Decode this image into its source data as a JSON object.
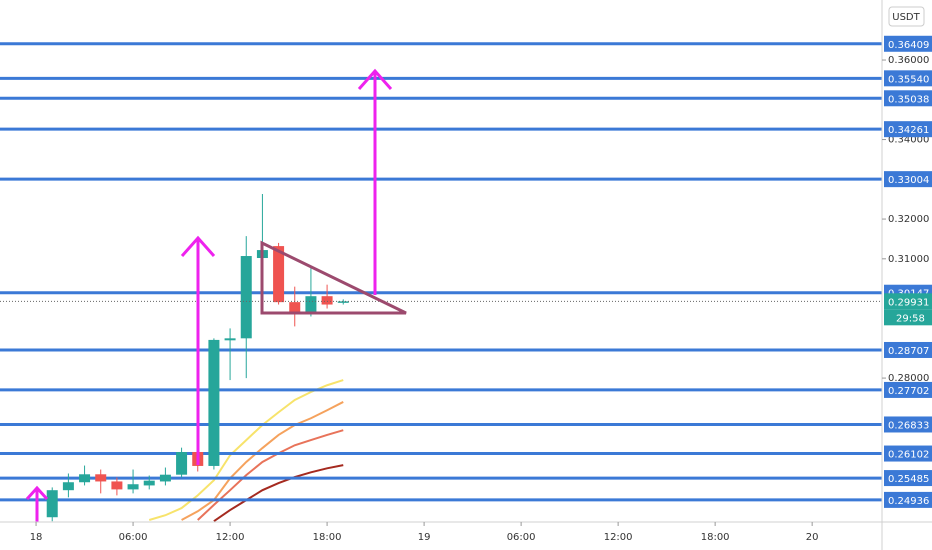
{
  "chart_data": {
    "type": "candlestick",
    "currency": "USDT",
    "countdown": "29:58",
    "x": [
      1,
      2,
      3,
      4,
      5,
      6,
      7,
      8,
      9,
      10,
      11,
      12,
      13,
      14,
      15,
      16,
      17,
      18,
      19
    ],
    "open": [
      0.245,
      0.2518,
      0.2538,
      0.2558,
      0.254,
      0.252,
      0.253,
      0.254,
      0.2557,
      0.2614,
      0.2579,
      0.2895,
      0.29,
      0.3102,
      0.3132,
      0.2991,
      0.2966,
      0.3006,
      0.299
    ],
    "high": [
      0.2525,
      0.256,
      0.258,
      0.257,
      0.255,
      0.257,
      0.2555,
      0.2575,
      0.2625,
      0.2625,
      0.29,
      0.2925,
      0.3157,
      0.3263,
      0.314,
      0.303,
      0.3077,
      0.3035,
      0.2998
    ],
    "low": [
      0.244,
      0.25,
      0.253,
      0.251,
      0.2505,
      0.251,
      0.252,
      0.253,
      0.255,
      0.2565,
      0.257,
      0.2795,
      0.28,
      0.3042,
      0.2985,
      0.293,
      0.2955,
      0.2975,
      0.2985
    ],
    "close": [
      0.2518,
      0.2538,
      0.2558,
      0.254,
      0.252,
      0.2533,
      0.2542,
      0.2557,
      0.2614,
      0.2579,
      0.2896,
      0.29,
      0.3107,
      0.3122,
      0.2991,
      0.2966,
      0.3006,
      0.2985,
      0.2993
    ],
    "up_color": "#26a69a",
    "down_color": "#ef5350",
    "series": [
      {
        "color": "#f7e36b",
        "values": [
          null,
          null,
          null,
          null,
          null,
          null,
          0.2443,
          0.2455,
          0.2473,
          0.2505,
          0.2543,
          0.2606,
          0.2644,
          0.2682,
          0.2714,
          0.2745,
          0.2765,
          0.2782,
          0.2795
        ]
      },
      {
        "color": "#f5a25d",
        "values": [
          null,
          null,
          null,
          null,
          null,
          null,
          null,
          null,
          0.2443,
          0.2465,
          0.2493,
          0.2548,
          0.2589,
          0.2624,
          0.2657,
          0.2682,
          0.2699,
          0.2719,
          0.274
        ]
      },
      {
        "color": "#e8735a",
        "values": [
          null,
          null,
          null,
          null,
          null,
          null,
          null,
          null,
          null,
          0.2443,
          0.2481,
          0.2518,
          0.2556,
          0.2589,
          0.2611,
          0.2631,
          0.2644,
          0.2657,
          0.2669
        ]
      },
      {
        "color": "#a52a1f",
        "values": [
          null,
          null,
          null,
          null,
          null,
          null,
          null,
          null,
          null,
          null,
          0.244,
          0.2468,
          0.2493,
          0.2518,
          0.2536,
          0.2551,
          0.2563,
          0.2573,
          0.2581
        ]
      }
    ],
    "levels": {
      "color": "#3b79d6",
      "values": [
        0.36409,
        0.3554,
        0.35038,
        0.34261,
        0.33004,
        0.30147,
        0.28707,
        0.27702,
        0.26833,
        0.26102,
        0.25485,
        0.24936
      ],
      "value_labels": [
        "0.36409",
        "0.35540",
        "0.35038",
        "0.34261",
        "0.33004",
        "0.30147",
        "0.28707",
        "0.27702",
        "0.26833",
        "0.26102",
        "0.25485",
        "0.24936"
      ]
    },
    "last_price": {
      "value": 0.29931,
      "color": "#26a69a"
    },
    "xlim": [
      -2.23,
      52.32
    ],
    "xticks": [
      {
        "value": 0,
        "label": "18"
      },
      {
        "value": 6,
        "label": "06:00"
      },
      {
        "value": 12,
        "label": "12:00"
      },
      {
        "value": 18,
        "label": "18:00"
      },
      {
        "value": 24,
        "label": "19"
      },
      {
        "value": 30,
        "label": "06:00"
      },
      {
        "value": 36,
        "label": "12:00"
      },
      {
        "value": 42,
        "label": "18:00"
      },
      {
        "value": 48,
        "label": "20"
      }
    ],
    "ylim": [
      0.2438,
      0.3751
    ],
    "yticks": [
      {
        "value": 0.36,
        "label": "0.36000"
      },
      {
        "value": 0.34,
        "label": "0.34000"
      },
      {
        "value": 0.32,
        "label": "0.32000"
      },
      {
        "value": 0.31,
        "label": "0.31000"
      },
      {
        "value": 0.28,
        "label": "0.28000"
      }
    ]
  }
}
